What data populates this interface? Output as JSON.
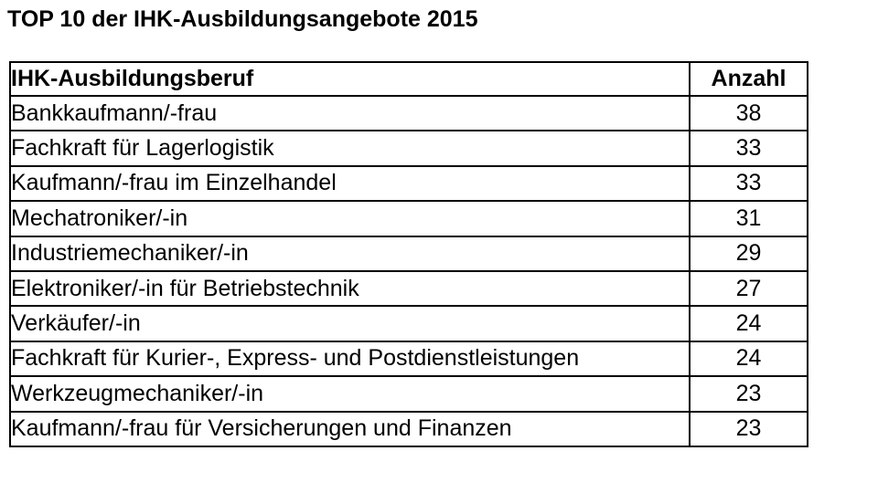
{
  "page": {
    "background_color": "#ffffff",
    "border_color": "#000000",
    "text_color": "#000000"
  },
  "title": "TOP 10 der IHK-Ausbildungsangebote 2015",
  "table": {
    "headers": [
      "IHK-Ausbildungsberuf",
      "Anzahl"
    ],
    "rows": [
      {
        "beruf": "Bankkaufmann/-frau",
        "anzahl": "38"
      },
      {
        "beruf": "Fachkraft für Lagerlogistik",
        "anzahl": "33"
      },
      {
        "beruf": "Kaufmann/-frau im Einzelhandel",
        "anzahl": "33"
      },
      {
        "beruf": "Mechatroniker/-in",
        "anzahl": "31"
      },
      {
        "beruf": "Industriemechaniker/-in",
        "anzahl": "29"
      },
      {
        "beruf": "Elektroniker/-in für Betriebstechnik",
        "anzahl": "27"
      },
      {
        "beruf": "Verkäufer/-in",
        "anzahl": "24"
      },
      {
        "beruf": "Fachkraft für Kurier-, Express- und Postdienstleistungen",
        "anzahl": "24"
      },
      {
        "beruf": "Werkzeugmechaniker/-in",
        "anzahl": "23"
      },
      {
        "beruf": "Kaufmann/-frau für Versicherungen und Finanzen",
        "anzahl": "23"
      }
    ]
  },
  "chart_data": {
    "type": "table",
    "title": "TOP 10 der IHK-Ausbildungsangebote 2015",
    "columns": [
      "IHK-Ausbildungsberuf",
      "Anzahl"
    ],
    "categories": [
      "Bankkaufmann/-frau",
      "Fachkraft für Lagerlogistik",
      "Kaufmann/-frau im Einzelhandel",
      "Mechatroniker/-in",
      "Industriemechaniker/-in",
      "Elektroniker/-in für Betriebstechnik",
      "Verkäufer/-in",
      "Fachkraft für Kurier-, Express- und Postdienstleistungen",
      "Werkzeugmechaniker/-in",
      "Kaufmann/-frau für Versicherungen und Finanzen"
    ],
    "values": [
      38,
      33,
      33,
      31,
      29,
      27,
      24,
      24,
      23,
      23
    ]
  }
}
